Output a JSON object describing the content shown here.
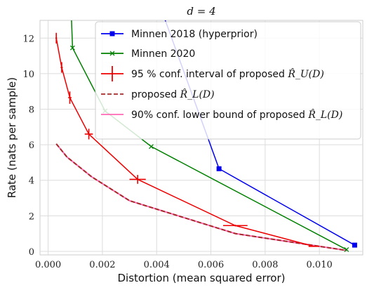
{
  "chart_data": {
    "type": "line",
    "title": "d = 4",
    "xlabel": "Distortion (mean squared error)",
    "ylabel": "Rate (nats per sample)",
    "xlim": [
      -0.0003,
      0.0116
    ],
    "ylim": [
      -0.2,
      13
    ],
    "x_ticks": [
      "0.000",
      "0.002",
      "0.004",
      "0.006",
      "0.008",
      "0.010"
    ],
    "x_tick_values": [
      0,
      0.002,
      0.004,
      0.006,
      0.008,
      0.01
    ],
    "y_ticks": [
      "0",
      "2",
      "4",
      "6",
      "8",
      "10",
      "12"
    ],
    "y_tick_values": [
      0,
      2,
      4,
      6,
      8,
      10,
      12
    ],
    "grid": true,
    "legend_position": "top-right",
    "series": [
      {
        "name": "Minnen 2018 (hyperprior)",
        "color": "#0000ee",
        "marker": "square",
        "x": [
          0.0042,
          0.0063,
          0.0113
        ],
        "y": [
          13.5,
          4.65,
          0.35
        ]
      },
      {
        "name": "Minnen 2020",
        "color": "#008000",
        "marker": "x",
        "x": [
          0.00085,
          0.0009,
          0.0021,
          0.0038,
          0.011
        ],
        "y": [
          13.5,
          11.45,
          7.9,
          5.9,
          0.1
        ]
      },
      {
        "name": "95 % conf. interval of proposed R_U(D)",
        "label_prefix": "95 % conf. interval of proposed ",
        "label_math": "R̂_U(D)",
        "color": "#ee0000",
        "marker": "errorbar",
        "x": [
          0.0003,
          0.0005,
          0.0008,
          0.0015,
          0.0033,
          0.0069,
          0.0098
        ],
        "y": [
          12.0,
          10.35,
          8.65,
          6.6,
          4.05,
          1.45,
          0.28
        ],
        "xerr": [
          3e-05,
          4e-05,
          6e-05,
          0.00015,
          0.0003,
          0.00045,
          0.0002
        ],
        "yerr": [
          0.3,
          0.3,
          0.35,
          0.3,
          0.25,
          0.05,
          0.03
        ]
      },
      {
        "name": "proposed R_L(D)",
        "label_prefix": "proposed ",
        "label_math": "R̂_L(D)",
        "color": "#a52a2a",
        "style": "dashed",
        "x": [
          0.0003,
          0.0007,
          0.0016,
          0.003,
          0.0069,
          0.011
        ],
        "y": [
          6.05,
          5.3,
          4.2,
          2.85,
          1.0,
          0.05
        ]
      },
      {
        "name": "90% conf. lower bound of proposed R_L(D)",
        "label_prefix": "90% conf. lower bound of proposed ",
        "label_math": "R̂_L(D)",
        "color": "#ff69b4",
        "style": "solid",
        "x": [
          0.0003,
          0.0007,
          0.0016,
          0.003,
          0.0069,
          0.011
        ],
        "y": [
          6.05,
          5.3,
          4.2,
          2.85,
          1.0,
          0.05
        ]
      }
    ]
  }
}
